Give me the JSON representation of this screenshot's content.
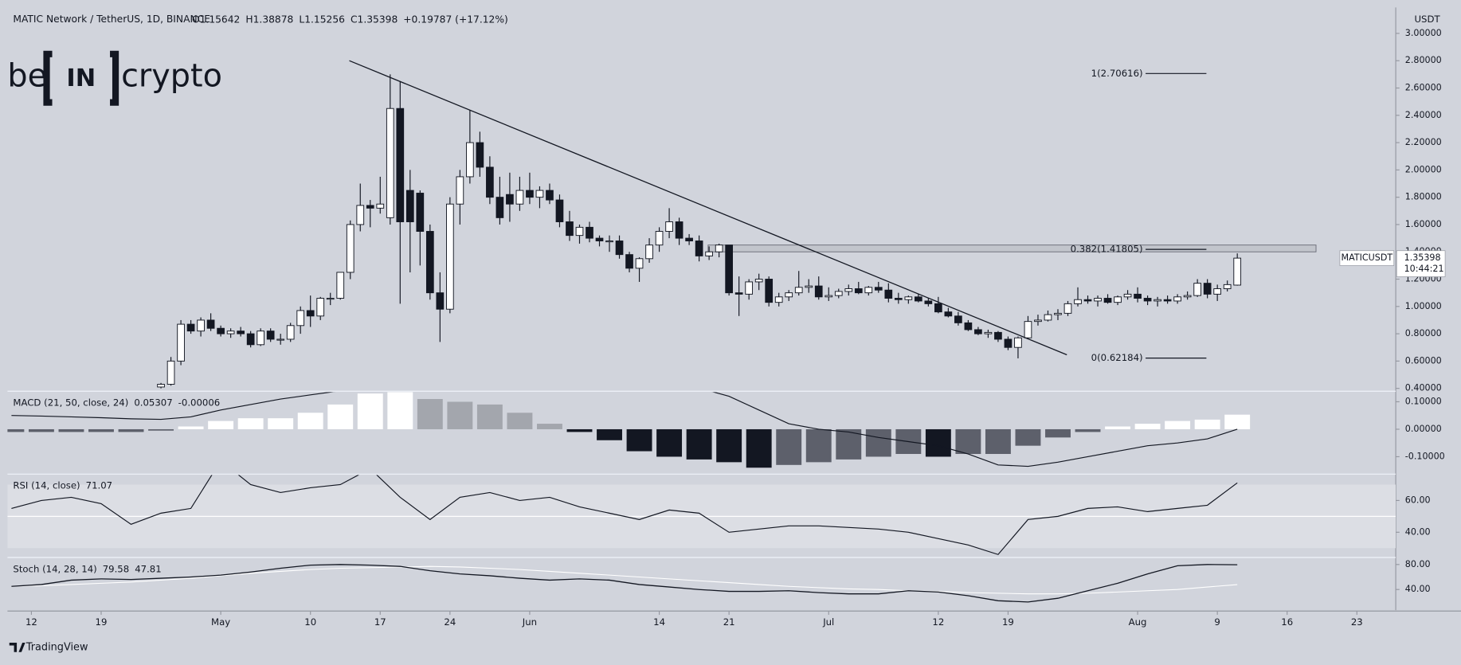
{
  "header": {
    "symbol": "MATIC Network / TetherUS, 1D, BINANCE",
    "ohlc_labels": [
      "O",
      "H",
      "L",
      "C"
    ],
    "change": "+0.19787 (+17.12%)",
    "currency": "USDT",
    "ticker": "MATICUSDT",
    "countdown": "10:44:21"
  },
  "logo": {
    "left": "be",
    "mid": "IN",
    "right": "crypto"
  },
  "footer": "TradingView",
  "chart_data": [
    {
      "type": "candlestick",
      "up_color": "#ffffff",
      "down_color": "#131722",
      "xlim": [
        -0.4,
        138.9
      ],
      "xticks": [
        {
          "value": 2,
          "label": "12"
        },
        {
          "value": 9,
          "label": "19"
        },
        {
          "value": 21,
          "label": "May"
        },
        {
          "value": 30,
          "label": "10"
        },
        {
          "value": 37,
          "label": "17"
        },
        {
          "value": 44,
          "label": "24"
        },
        {
          "value": 52,
          "label": "Jun"
        },
        {
          "value": 65,
          "label": "14"
        },
        {
          "value": 72,
          "label": "21"
        },
        {
          "value": 82,
          "label": "Jul"
        },
        {
          "value": 93,
          "label": "12"
        },
        {
          "value": 100,
          "label": "19"
        },
        {
          "value": 113,
          "label": "Aug"
        },
        {
          "value": 121,
          "label": "9"
        },
        {
          "value": 128,
          "label": "16"
        },
        {
          "value": 135,
          "label": "23"
        }
      ],
      "ylim": [
        0.386,
        3.19
      ],
      "yticks": [
        {
          "value": 0.4,
          "label": "0.40000"
        },
        {
          "value": 0.6,
          "label": "0.60000"
        },
        {
          "value": 0.8,
          "label": "0.80000"
        },
        {
          "value": 1.0,
          "label": "1.00000"
        },
        {
          "value": 1.2,
          "label": "1.20000"
        },
        {
          "value": 1.4,
          "label": "1.40000"
        },
        {
          "value": 1.6,
          "label": "1.60000"
        },
        {
          "value": 1.8,
          "label": "1.80000"
        },
        {
          "value": 2.0,
          "label": "2.00000"
        },
        {
          "value": 2.2,
          "label": "2.20000"
        },
        {
          "value": 2.4,
          "label": "2.40000"
        },
        {
          "value": 2.6,
          "label": "2.60000"
        },
        {
          "value": 2.8,
          "label": "2.80000"
        },
        {
          "value": 3.0,
          "label": "3.00000"
        }
      ],
      "x": [
        15,
        16,
        17,
        18,
        19,
        20,
        21,
        22,
        23,
        24,
        25,
        26,
        27,
        28,
        29,
        30,
        31,
        32,
        33,
        34,
        35,
        36,
        37,
        38,
        39,
        40,
        41,
        42,
        43,
        44,
        45,
        46,
        47,
        48,
        49,
        50,
        51,
        52,
        53,
        54,
        55,
        56,
        57,
        58,
        59,
        60,
        61,
        62,
        63,
        64,
        65,
        66,
        67,
        68,
        69,
        70,
        71,
        72,
        73,
        74,
        75,
        76,
        77,
        78,
        79,
        80,
        81,
        82,
        83,
        84,
        85,
        86,
        87,
        88,
        89,
        90,
        91,
        92,
        93,
        94,
        95,
        96,
        97,
        98,
        99,
        100,
        101,
        102,
        103,
        104,
        105,
        106,
        107,
        108,
        109,
        110,
        111,
        112,
        113,
        114,
        115,
        116,
        117,
        118,
        119,
        120,
        121,
        122,
        123
      ],
      "candles": [
        [
          0.41,
          0.44,
          0.4,
          0.43
        ],
        [
          0.43,
          0.63,
          0.42,
          0.6
        ],
        [
          0.6,
          0.9,
          0.57,
          0.87
        ],
        [
          0.87,
          0.9,
          0.8,
          0.82
        ],
        [
          0.82,
          0.92,
          0.78,
          0.9
        ],
        [
          0.9,
          0.95,
          0.82,
          0.84
        ],
        [
          0.84,
          0.86,
          0.78,
          0.8
        ],
        [
          0.8,
          0.84,
          0.77,
          0.82
        ],
        [
          0.82,
          0.85,
          0.78,
          0.8
        ],
        [
          0.8,
          0.82,
          0.7,
          0.72
        ],
        [
          0.72,
          0.84,
          0.71,
          0.82
        ],
        [
          0.82,
          0.84,
          0.74,
          0.76
        ],
        [
          0.76,
          0.8,
          0.72,
          0.76
        ],
        [
          0.76,
          0.88,
          0.74,
          0.86
        ],
        [
          0.86,
          1.0,
          0.8,
          0.97
        ],
        [
          0.97,
          1.08,
          0.85,
          0.93
        ],
        [
          0.93,
          1.07,
          0.9,
          1.06
        ],
        [
          1.06,
          1.1,
          1.01,
          1.06
        ],
        [
          1.06,
          1.25,
          1.05,
          1.25
        ],
        [
          1.25,
          1.63,
          1.2,
          1.6
        ],
        [
          1.6,
          1.9,
          1.55,
          1.74
        ],
        [
          1.74,
          1.78,
          1.58,
          1.72
        ],
        [
          1.72,
          1.95,
          1.68,
          1.75
        ],
        [
          1.65,
          2.7,
          1.6,
          2.45
        ],
        [
          2.45,
          2.65,
          1.02,
          1.62
        ],
        [
          1.85,
          2.0,
          1.25,
          1.62
        ],
        [
          1.83,
          1.85,
          1.3,
          1.55
        ],
        [
          1.55,
          1.6,
          1.05,
          1.1
        ],
        [
          1.1,
          1.25,
          0.74,
          0.98
        ],
        [
          0.98,
          1.8,
          0.95,
          1.75
        ],
        [
          1.75,
          2.0,
          1.6,
          1.95
        ],
        [
          1.95,
          2.44,
          1.9,
          2.2
        ],
        [
          2.2,
          2.28,
          1.95,
          2.02
        ],
        [
          2.02,
          2.1,
          1.75,
          1.8
        ],
        [
          1.8,
          1.95,
          1.6,
          1.65
        ],
        [
          1.82,
          1.98,
          1.62,
          1.75
        ],
        [
          1.75,
          1.95,
          1.7,
          1.85
        ],
        [
          1.85,
          1.98,
          1.75,
          1.8
        ],
        [
          1.8,
          1.88,
          1.72,
          1.85
        ],
        [
          1.85,
          1.9,
          1.75,
          1.78
        ],
        [
          1.78,
          1.82,
          1.58,
          1.62
        ],
        [
          1.62,
          1.7,
          1.48,
          1.52
        ],
        [
          1.52,
          1.6,
          1.46,
          1.58
        ],
        [
          1.58,
          1.62,
          1.47,
          1.5
        ],
        [
          1.5,
          1.52,
          1.44,
          1.48
        ],
        [
          1.48,
          1.52,
          1.4,
          1.48
        ],
        [
          1.48,
          1.52,
          1.35,
          1.38
        ],
        [
          1.38,
          1.4,
          1.25,
          1.28
        ],
        [
          1.28,
          1.36,
          1.18,
          1.35
        ],
        [
          1.35,
          1.5,
          1.32,
          1.45
        ],
        [
          1.45,
          1.58,
          1.4,
          1.55
        ],
        [
          1.55,
          1.72,
          1.5,
          1.62
        ],
        [
          1.62,
          1.65,
          1.45,
          1.5
        ],
        [
          1.5,
          1.53,
          1.45,
          1.48
        ],
        [
          1.48,
          1.52,
          1.33,
          1.37
        ],
        [
          1.37,
          1.44,
          1.34,
          1.4
        ],
        [
          1.4,
          1.46,
          1.36,
          1.45
        ],
        [
          1.45,
          1.45,
          1.08,
          1.1
        ],
        [
          1.1,
          1.22,
          0.93,
          1.09
        ],
        [
          1.09,
          1.2,
          1.05,
          1.18
        ],
        [
          1.18,
          1.24,
          1.12,
          1.2
        ],
        [
          1.2,
          1.22,
          1.0,
          1.03
        ],
        [
          1.03,
          1.1,
          1.0,
          1.07
        ],
        [
          1.07,
          1.12,
          1.04,
          1.1
        ],
        [
          1.1,
          1.26,
          1.08,
          1.14
        ],
        [
          1.14,
          1.2,
          1.1,
          1.15
        ],
        [
          1.15,
          1.22,
          1.05,
          1.07
        ],
        [
          1.07,
          1.14,
          1.04,
          1.08
        ],
        [
          1.08,
          1.13,
          1.06,
          1.11
        ],
        [
          1.11,
          1.16,
          1.08,
          1.13
        ],
        [
          1.13,
          1.18,
          1.09,
          1.1
        ],
        [
          1.1,
          1.15,
          1.08,
          1.14
        ],
        [
          1.14,
          1.18,
          1.1,
          1.12
        ],
        [
          1.12,
          1.17,
          1.03,
          1.06
        ],
        [
          1.06,
          1.1,
          1.02,
          1.05
        ],
        [
          1.05,
          1.08,
          1.02,
          1.07
        ],
        [
          1.07,
          1.09,
          1.03,
          1.04
        ],
        [
          1.04,
          1.06,
          1.0,
          1.02
        ],
        [
          1.02,
          1.07,
          0.95,
          0.96
        ],
        [
          0.96,
          0.99,
          0.92,
          0.93
        ],
        [
          0.93,
          0.96,
          0.86,
          0.88
        ],
        [
          0.88,
          0.9,
          0.82,
          0.83
        ],
        [
          0.83,
          0.85,
          0.79,
          0.8
        ],
        [
          0.8,
          0.83,
          0.77,
          0.81
        ],
        [
          0.81,
          0.82,
          0.74,
          0.76
        ],
        [
          0.76,
          0.78,
          0.68,
          0.7
        ],
        [
          0.7,
          0.78,
          0.62,
          0.77
        ],
        [
          0.77,
          0.93,
          0.76,
          0.89
        ],
        [
          0.89,
          0.94,
          0.86,
          0.9
        ],
        [
          0.9,
          0.97,
          0.89,
          0.94
        ],
        [
          0.94,
          0.98,
          0.9,
          0.95
        ],
        [
          0.95,
          1.04,
          0.93,
          1.02
        ],
        [
          1.02,
          1.14,
          1.0,
          1.05
        ],
        [
          1.05,
          1.08,
          1.02,
          1.04
        ],
        [
          1.04,
          1.08,
          1.0,
          1.06
        ],
        [
          1.06,
          1.09,
          1.02,
          1.03
        ],
        [
          1.03,
          1.08,
          1.01,
          1.07
        ],
        [
          1.07,
          1.12,
          1.05,
          1.09
        ],
        [
          1.09,
          1.14,
          1.03,
          1.06
        ],
        [
          1.06,
          1.08,
          1.01,
          1.04
        ],
        [
          1.04,
          1.07,
          1.0,
          1.05
        ],
        [
          1.05,
          1.08,
          1.02,
          1.04
        ],
        [
          1.04,
          1.09,
          1.02,
          1.07
        ],
        [
          1.07,
          1.11,
          1.05,
          1.08
        ],
        [
          1.08,
          1.2,
          1.07,
          1.17
        ],
        [
          1.17,
          1.2,
          1.06,
          1.09
        ],
        [
          1.09,
          1.16,
          1.04,
          1.13
        ],
        [
          1.13,
          1.19,
          1.11,
          1.16
        ],
        [
          1.15642,
          1.38878,
          1.15256,
          1.35398
        ]
      ],
      "trendline": {
        "x": [
          33.9,
          105.9
        ],
        "y": [
          2.8,
          0.646
        ]
      },
      "zone": {
        "x": [
          69.9,
          130.9
        ],
        "y": [
          1.4,
          1.45
        ]
      },
      "fib_levels": [
        {
          "label": "1(2.70616)",
          "value": 2.70616
        },
        {
          "label": "0.382(1.41805)",
          "value": 1.41805
        },
        {
          "label": "0(0.62184)",
          "value": 0.62184
        }
      ],
      "fib_x": [
        113.8,
        119.9
      ]
    },
    {
      "type": "macd",
      "title": "MACD (21, 50, close, 24)",
      "ylim": [
        -0.16,
        0.135
      ],
      "yticks": [
        {
          "value": 0.1,
          "label": "0.10000"
        },
        {
          "value": 0,
          "label": "0.00000"
        },
        {
          "value": -0.1,
          "label": "-0.10000"
        }
      ],
      "x": [
        0,
        3,
        6,
        9,
        12,
        15,
        18,
        21,
        24,
        27,
        30,
        33,
        36,
        39,
        42,
        45,
        48,
        51,
        54,
        57,
        60,
        63,
        66,
        69,
        72,
        75,
        78,
        81,
        84,
        87,
        90,
        93,
        96,
        99,
        102,
        105,
        108,
        111,
        114,
        117,
        120,
        123
      ],
      "histogram": [
        -0.01,
        -0.01,
        -0.01,
        -0.01,
        -0.01,
        -0.005,
        0.01,
        0.03,
        0.04,
        0.04,
        0.06,
        0.09,
        0.13,
        0.15,
        0.11,
        0.1,
        0.09,
        0.06,
        0.02,
        -0.01,
        -0.04,
        -0.08,
        -0.1,
        -0.11,
        -0.12,
        -0.14,
        -0.13,
        -0.12,
        -0.11,
        -0.1,
        -0.09,
        -0.1,
        -0.09,
        -0.09,
        -0.06,
        -0.03,
        -0.01,
        0.01,
        0.02,
        0.03,
        0.035,
        0.05307
      ],
      "macd": [
        0.05,
        0.048,
        0.045,
        0.042,
        0.038,
        0.036,
        0.045,
        0.07,
        0.09,
        0.11,
        0.125,
        0.14,
        0.17,
        0.21,
        0.21,
        0.23,
        0.24,
        0.24,
        0.23,
        0.21,
        0.19,
        0.17,
        0.16,
        0.15,
        0.12,
        0.07,
        0.02,
        0.0,
        -0.01,
        -0.03,
        -0.045,
        -0.06,
        -0.09,
        -0.13,
        -0.135,
        -0.12,
        -0.1,
        -0.08,
        -0.06,
        -0.05,
        -0.035,
        -6e-05
      ],
      "color": "#131722"
    },
    {
      "type": "rsi",
      "title": "RSI (14, close)",
      "ylim": [
        25,
        76
      ],
      "band": [
        30,
        70
      ],
      "midline": 50,
      "yticks": [
        {
          "value": 60,
          "label": "60.00"
        },
        {
          "value": 40,
          "label": "40.00"
        }
      ],
      "x": [
        0,
        3,
        6,
        9,
        12,
        15,
        18,
        21,
        24,
        27,
        30,
        33,
        36,
        39,
        42,
        45,
        48,
        51,
        54,
        57,
        60,
        63,
        66,
        69,
        72,
        75,
        78,
        81,
        84,
        87,
        90,
        93,
        96,
        99,
        102,
        105,
        108,
        111,
        114,
        117,
        120,
        123
      ],
      "values": [
        55,
        60,
        62,
        58,
        45,
        52,
        55,
        85,
        70,
        65,
        68,
        70,
        80,
        62,
        48,
        62,
        65,
        60,
        62,
        56,
        52,
        48,
        54,
        52,
        40,
        42,
        44,
        44,
        43,
        42,
        40,
        36,
        32,
        26,
        48,
        50,
        55,
        56,
        53,
        55,
        57,
        71.07
      ],
      "color": "#131722"
    },
    {
      "type": "stoch",
      "title": "Stoch (14, 28, 14)",
      "ylim": [
        7,
        89
      ],
      "yticks": [
        {
          "value": 80,
          "label": "80.00"
        },
        {
          "value": 40,
          "label": "40.00"
        }
      ],
      "x": [
        0,
        3,
        6,
        9,
        12,
        15,
        18,
        21,
        24,
        27,
        30,
        33,
        36,
        39,
        42,
        45,
        48,
        51,
        54,
        57,
        60,
        63,
        66,
        69,
        72,
        75,
        78,
        81,
        84,
        87,
        90,
        93,
        96,
        99,
        102,
        105,
        108,
        111,
        114,
        117,
        120,
        123
      ],
      "k": [
        45,
        48,
        55,
        57,
        56,
        58,
        60,
        63,
        68,
        74,
        79,
        80,
        79,
        77,
        70,
        65,
        62,
        58,
        55,
        57,
        55,
        48,
        44,
        40,
        37,
        37,
        38,
        35,
        33,
        33,
        38,
        36,
        30,
        22,
        20,
        26,
        38,
        50,
        65,
        78,
        80,
        79.58
      ],
      "d": [
        45,
        46,
        48,
        50,
        52,
        55,
        58,
        62,
        66,
        69,
        72,
        74,
        75,
        76,
        77,
        76,
        74,
        72,
        69,
        66,
        63,
        60,
        57,
        54,
        51,
        48,
        45,
        43,
        41,
        40,
        38,
        37,
        35,
        34,
        33,
        33,
        34,
        36,
        38,
        40,
        44,
        47.81
      ],
      "k_color": "#131722",
      "d_color": "#ffffff"
    }
  ]
}
